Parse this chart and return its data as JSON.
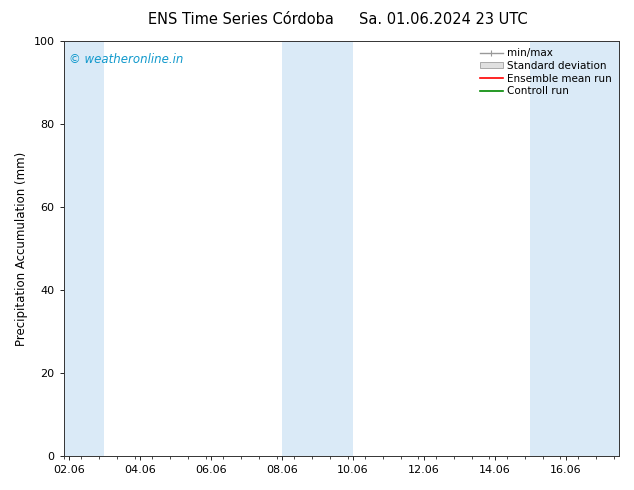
{
  "title_left": "ENS Time Series Córdoba",
  "title_right": "Sa. 01.06.2024 23 UTC",
  "ylabel": "Precipitation Accumulation (mm)",
  "ylim": [
    0,
    100
  ],
  "yticks": [
    0,
    20,
    40,
    60,
    80,
    100
  ],
  "xtick_labels": [
    "02.06",
    "04.06",
    "06.06",
    "08.06",
    "10.06",
    "12.06",
    "14.06",
    "16.06"
  ],
  "xtick_positions": [
    0,
    2,
    4,
    6,
    8,
    10,
    12,
    14
  ],
  "xlim": [
    -0.15,
    15.5
  ],
  "shade_bands": [
    {
      "start": -0.15,
      "end": 1.0
    },
    {
      "start": 6.0,
      "end": 8.0
    },
    {
      "start": 13.0,
      "end": 15.5
    }
  ],
  "shade_color": "#daeaf7",
  "watermark_text": "© weatheronline.in",
  "watermark_color": "#1199cc",
  "legend_labels": [
    "min/max",
    "Standard deviation",
    "Ensemble mean run",
    "Controll run"
  ],
  "legend_colors": [
    "#999999",
    "#cccccc",
    "#ff0000",
    "#008800"
  ],
  "background_color": "#ffffff",
  "plot_bg_color": "#ffffff",
  "title_fontsize": 10.5,
  "tick_fontsize": 8,
  "ylabel_fontsize": 8.5,
  "watermark_fontsize": 8.5,
  "legend_fontsize": 7.5
}
